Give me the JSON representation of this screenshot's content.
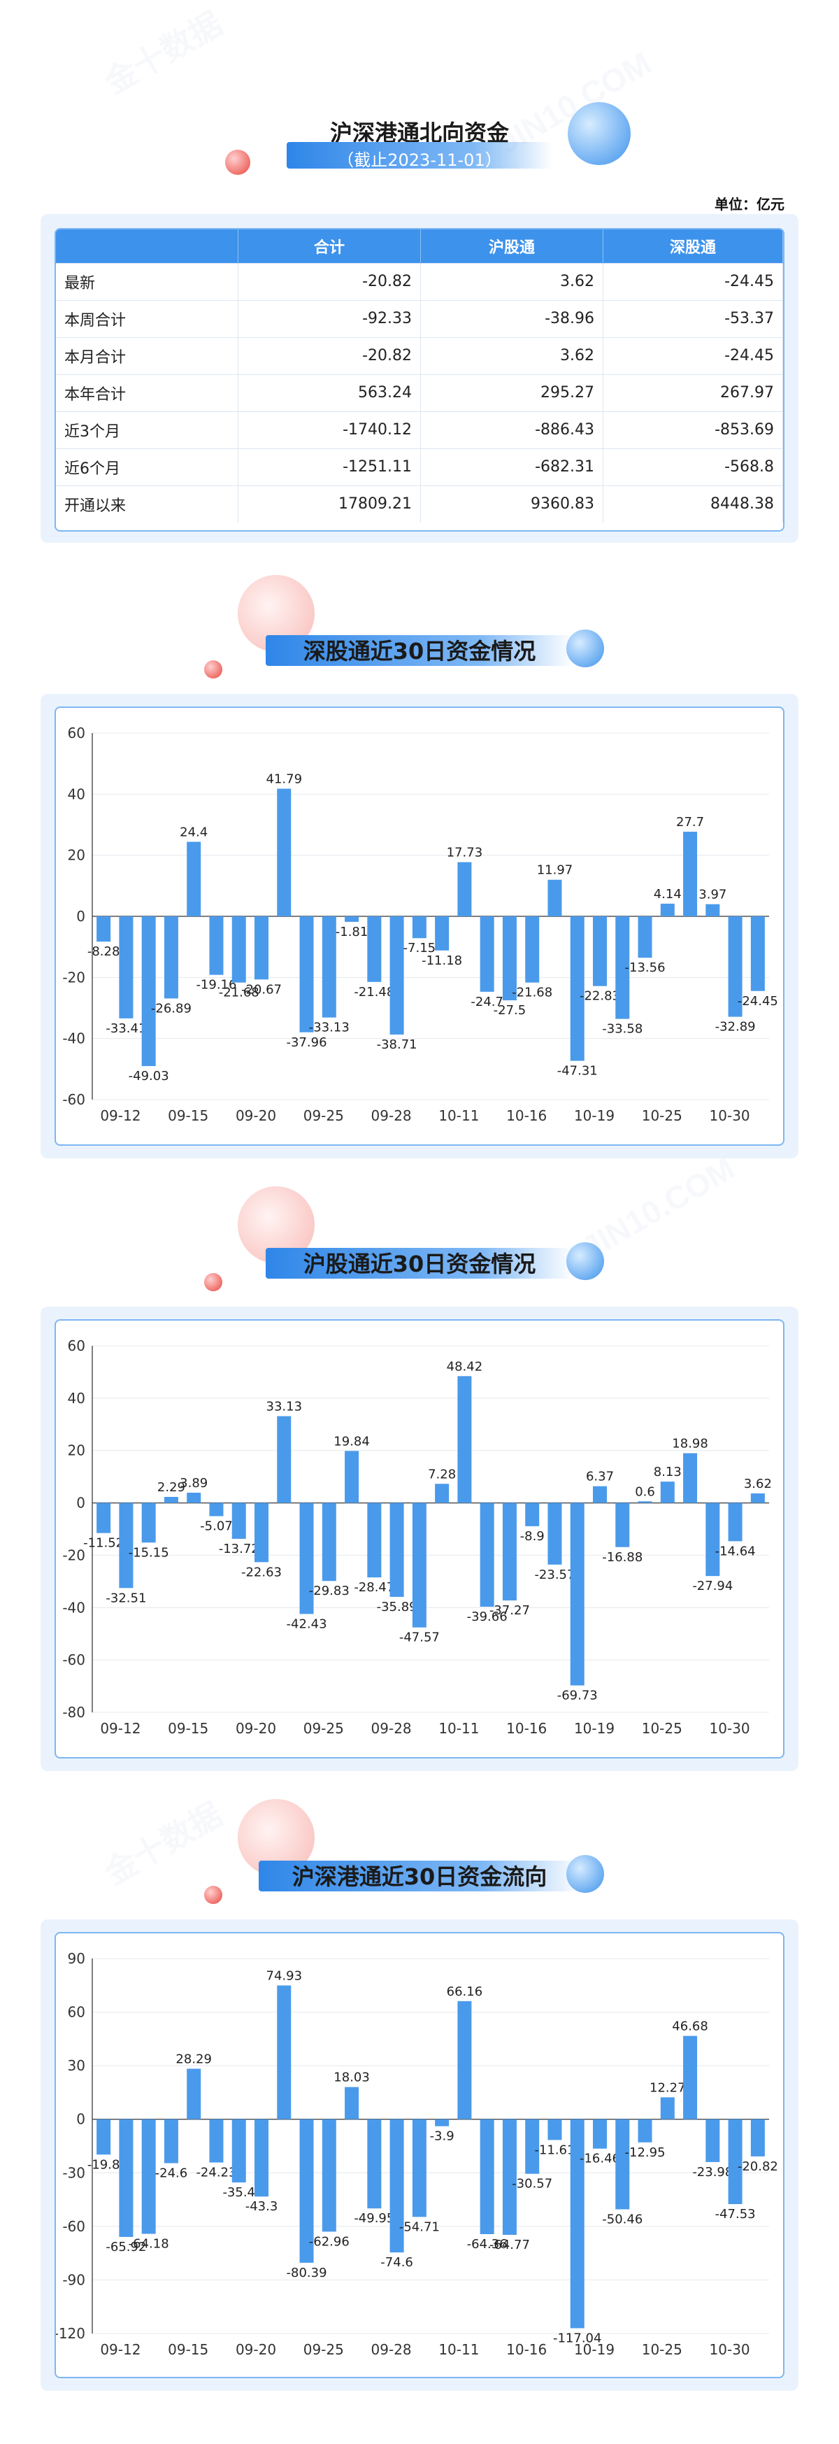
{
  "header": {
    "title": "沪深港通北向资金",
    "subtitle": "（截止2023-11-01）",
    "unit": "单位：亿元"
  },
  "summary_table": {
    "columns": [
      "",
      "合计",
      "沪股通",
      "深股通"
    ],
    "rows": [
      {
        "label": "最新",
        "total": "-20.82",
        "sh": "3.62",
        "sz": "-24.45"
      },
      {
        "label": "本周合计",
        "total": "-92.33",
        "sh": "-38.96",
        "sz": "-53.37"
      },
      {
        "label": "本月合计",
        "total": "-20.82",
        "sh": "3.62",
        "sz": "-24.45"
      },
      {
        "label": "本年合计",
        "total": "563.24",
        "sh": "295.27",
        "sz": "267.97"
      },
      {
        "label": "近3个月",
        "total": "-1740.12",
        "sh": "-886.43",
        "sz": "-853.69"
      },
      {
        "label": "近6个月",
        "total": "-1251.11",
        "sh": "-682.31",
        "sz": "-568.8"
      },
      {
        "label": "开通以来",
        "total": "17809.21",
        "sh": "9360.83",
        "sz": "8448.38"
      }
    ]
  },
  "section_titles": {
    "sz": "深股通近30日资金情况",
    "sh": "沪股通近30日资金情况",
    "total": "沪深港通近30日资金流向"
  },
  "colors": {
    "bar": "#4a9aeb",
    "header": "#3d92ec",
    "border": "#7db6f3",
    "panel": "#eaf3fd"
  },
  "chart_data": [
    {
      "type": "bar",
      "title": "深股通近30日资金情况",
      "x_tick_labels": [
        "09-12",
        "09-15",
        "09-20",
        "09-25",
        "09-28",
        "10-11",
        "10-16",
        "10-19",
        "10-25",
        "10-30"
      ],
      "values": [
        -8.28,
        -33.41,
        -49.03,
        -26.89,
        24.4,
        -19.16,
        -21.68,
        -20.67,
        41.79,
        -37.96,
        -33.13,
        -1.81,
        -21.48,
        -38.71,
        -7.15,
        -11.18,
        17.73,
        -24.7,
        -27.5,
        -21.68,
        11.97,
        -47.31,
        -22.83,
        -33.58,
        -13.56,
        4.14,
        27.7,
        3.97,
        -32.89,
        -24.45
      ],
      "ylim": [
        -60,
        60
      ],
      "yticks": [
        -60,
        -40,
        -20,
        0,
        20,
        40,
        60
      ],
      "grid": true
    },
    {
      "type": "bar",
      "title": "沪股通近30日资金情况",
      "x_tick_labels": [
        "09-12",
        "09-15",
        "09-20",
        "09-25",
        "09-28",
        "10-11",
        "10-16",
        "10-19",
        "10-25",
        "10-30"
      ],
      "values": [
        -11.52,
        -32.51,
        -15.15,
        2.29,
        3.89,
        -5.07,
        -13.72,
        -22.63,
        33.13,
        -42.43,
        -29.83,
        19.84,
        -28.47,
        -35.89,
        -47.57,
        7.28,
        48.42,
        -39.66,
        -37.27,
        -8.9,
        -23.57,
        -69.73,
        6.37,
        -16.88,
        0.6,
        8.13,
        18.98,
        -27.94,
        -14.64,
        3.62
      ],
      "ylim": [
        -80,
        60
      ],
      "yticks": [
        -80,
        -60,
        -40,
        -20,
        0,
        20,
        40,
        60
      ],
      "grid": true
    },
    {
      "type": "bar",
      "title": "沪深港通近30日资金流向",
      "x_tick_labels": [
        "09-12",
        "09-15",
        "09-20",
        "09-25",
        "09-28",
        "10-11",
        "10-16",
        "10-19",
        "10-25",
        "10-30"
      ],
      "values": [
        -19.8,
        -65.92,
        -64.18,
        -24.6,
        28.29,
        -24.23,
        -35.4,
        -43.3,
        74.93,
        -80.39,
        -62.96,
        18.03,
        -49.95,
        -74.6,
        -54.71,
        -3.9,
        66.16,
        -64.36,
        -64.77,
        -30.57,
        -11.61,
        -117.04,
        -16.46,
        -50.46,
        -12.95,
        12.27,
        46.68,
        -23.98,
        -47.53,
        -20.82
      ],
      "ylim": [
        -120,
        90
      ],
      "yticks": [
        -120,
        -90,
        -60,
        -30,
        0,
        30,
        60,
        90
      ],
      "grid": true
    }
  ]
}
